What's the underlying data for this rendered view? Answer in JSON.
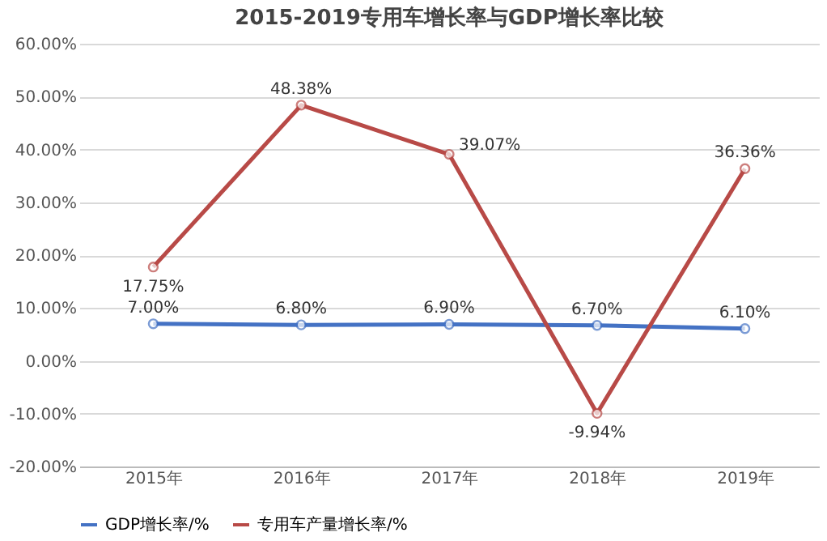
{
  "chart_data": {
    "type": "line",
    "title": "2015-2019专用车增长率与GDP增长率比较",
    "categories": [
      "2015年",
      "2016年",
      "2017年",
      "2018年",
      "2019年"
    ],
    "series": [
      {
        "name": "GDP增长率/%",
        "color": "#4472c4",
        "values": [
          7.0,
          6.8,
          6.9,
          6.7,
          6.1
        ],
        "value_labels": [
          "7.00%",
          "6.80%",
          "6.90%",
          "6.70%",
          "6.10%"
        ]
      },
      {
        "name": "专用车产量增长率/%",
        "color": "#b84a47",
        "values": [
          17.75,
          48.38,
          39.07,
          -9.94,
          36.36
        ],
        "value_labels": [
          "17.75%",
          "48.38%",
          "39.07%",
          "-9.94%",
          "36.36%"
        ]
      }
    ],
    "ylim": [
      -20,
      60
    ],
    "yticks": [
      {
        "value": -20,
        "label": "-20.00%"
      },
      {
        "value": -10,
        "label": "-10.00%"
      },
      {
        "value": 0,
        "label": "0.00%"
      },
      {
        "value": 10,
        "label": "10.00%"
      },
      {
        "value": 20,
        "label": "20.00%"
      },
      {
        "value": 30,
        "label": "30.00%"
      },
      {
        "value": 40,
        "label": "40.00%"
      },
      {
        "value": 50,
        "label": "50.00%"
      },
      {
        "value": 60,
        "label": "60.00%"
      }
    ],
    "grid": "y",
    "legend": "bottom",
    "marker": "circle",
    "line_style": "solid"
  }
}
